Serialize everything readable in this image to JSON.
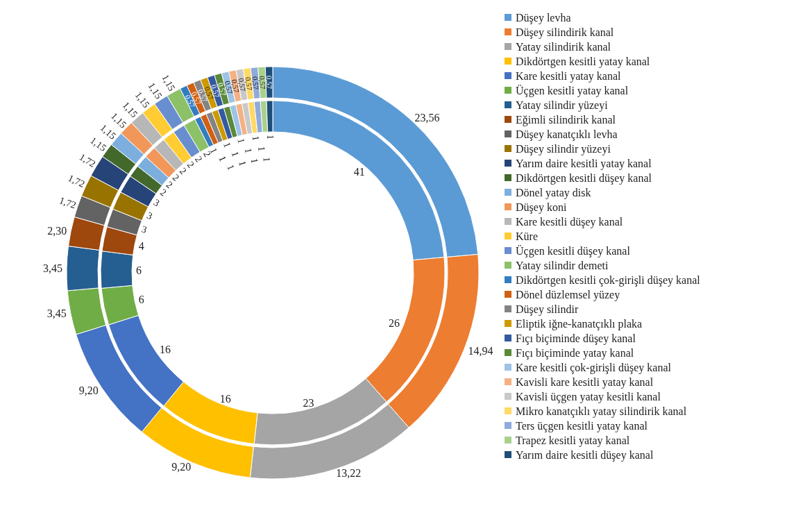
{
  "chart_data": {
    "type": "donut",
    "categories": [
      "Düşey levha",
      "Düşey silindirik kanal",
      "Yatay silindirik kanal",
      "Dikdörtgen kesitli yatay kanal",
      "Kare kesitli yatay kanal",
      "Üçgen kesitli yatay kanal",
      "Yatay silindir yüzeyi",
      "Eğimli silindirik kanal",
      "Düşey kanatçıklı levha",
      "Düşey silindir yüzeyi",
      "Yarım daire kesitli yatay kanal",
      "Dikdörtgen kesitli düşey kanal",
      "Dönel yatay disk",
      "Düşey koni",
      "Kare kesitli düşey kanal",
      "Küre",
      "Üçgen kesitli düşey kanal",
      "Yatay silindir demeti",
      "Dikdörtgen kesitli çok-girişli düşey kanal",
      "Dönel düzlemsel yüzey",
      "Düşey silindir",
      "Eliptik iğne-kanatçıklı plaka",
      "Fıçı biçiminde düşey kanal",
      "Fıçı biçiminde yatay kanal",
      "Kare kesitli çok-girişli düşey kanal",
      "Kavisli kare kesitli yatay kanal",
      "Kavisli üçgen yatay kesitli kanal",
      "Mikro kanatçıklı yatay silindirik kanal",
      "Ters üçgen kesitli yatay kanal",
      "Trapez kesitli yatay kanal",
      "Yarım daire kesitli düşey kanal"
    ],
    "colors": [
      "#5b9bd5",
      "#ed7d31",
      "#a5a5a5",
      "#ffc000",
      "#4472c4",
      "#70ad47",
      "#255e91",
      "#9e480e",
      "#636363",
      "#997300",
      "#264478",
      "#43682b",
      "#7cafdd",
      "#f1975a",
      "#b7b7b7",
      "#ffcd33",
      "#698ed0",
      "#8cc168",
      "#327dc2",
      "#d26012",
      "#848484",
      "#cc9a00",
      "#335aa1",
      "#5a8a39",
      "#9dc3e6",
      "#f4b183",
      "#c9c9c9",
      "#ffd966",
      "#8faadc",
      "#a9d18e",
      "#1f4e79"
    ],
    "series": [
      {
        "values": [
          41,
          26,
          23,
          16,
          16,
          6,
          6,
          4,
          3,
          3,
          3,
          2,
          2,
          2,
          2,
          2,
          2,
          2,
          1,
          1,
          1,
          1,
          1,
          1,
          1,
          1,
          1,
          1,
          1,
          1,
          1
        ],
        "value_labels": [
          "41",
          "26",
          "23",
          "16",
          "16",
          "6",
          "6",
          "4",
          "3",
          "3",
          "3",
          "2",
          "2",
          "2",
          "2",
          "2",
          "2",
          "2",
          "1",
          "1",
          "1",
          "1",
          "1",
          "1",
          "1",
          "1",
          "1",
          "1",
          "1",
          "1",
          "1"
        ]
      },
      {
        "values": [
          23.56,
          14.94,
          13.22,
          9.2,
          9.2,
          3.45,
          3.45,
          2.3,
          1.72,
          1.72,
          1.72,
          1.15,
          1.15,
          1.15,
          1.15,
          1.15,
          1.15,
          1.15,
          0.57,
          0.57,
          0.57,
          0.57,
          0.57,
          0.57,
          0.57,
          0.57,
          0.57,
          0.57,
          0.57,
          0.57,
          0.57
        ],
        "value_labels": [
          "23,56",
          "14,94",
          "13,22",
          "9,20",
          "9,20",
          "3,45",
          "3,45",
          "2,30",
          "1,72",
          "1,72",
          "1,72",
          "1,15",
          "1,15",
          "1,15",
          "1,15",
          "1,15",
          "1,15",
          "1,15",
          "0,57",
          "0,57",
          "0,57",
          "0,57",
          "0,57",
          "0,57",
          "0,57",
          "0,57",
          "0,57",
          "0,57",
          "0,57",
          "0,57",
          "0,57"
        ]
      }
    ],
    "legend": "right"
  }
}
